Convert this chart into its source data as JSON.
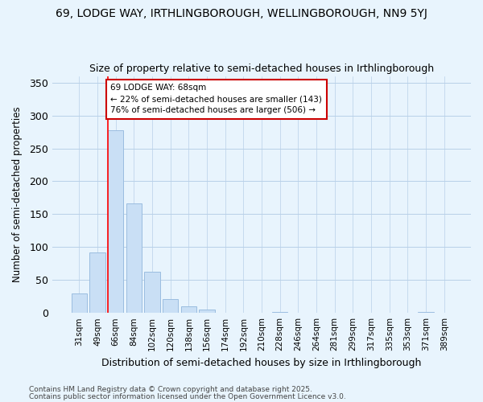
{
  "title1": "69, LODGE WAY, IRTHLINGBOROUGH, WELLINGBOROUGH, NN9 5YJ",
  "title2": "Size of property relative to semi-detached houses in Irthlingborough",
  "xlabel": "Distribution of semi-detached houses by size in Irthlingborough",
  "ylabel": "Number of semi-detached properties",
  "categories": [
    "31sqm",
    "49sqm",
    "66sqm",
    "84sqm",
    "102sqm",
    "120sqm",
    "138sqm",
    "156sqm",
    "174sqm",
    "192sqm",
    "210sqm",
    "228sqm",
    "246sqm",
    "264sqm",
    "281sqm",
    "299sqm",
    "317sqm",
    "335sqm",
    "353sqm",
    "371sqm",
    "389sqm"
  ],
  "values": [
    29,
    92,
    278,
    167,
    62,
    21,
    10,
    5,
    0,
    0,
    0,
    2,
    0,
    0,
    0,
    0,
    0,
    0,
    0,
    2,
    0
  ],
  "bar_color": "#c9dff5",
  "bar_edge_color": "#9bbde0",
  "red_line_x": 2,
  "annotation_line1": "69 LODGE WAY: 68sqm",
  "annotation_line2": "← 22% of semi-detached houses are smaller (143)",
  "annotation_line3": "76% of semi-detached houses are larger (506) →",
  "ylim": [
    0,
    360
  ],
  "yticks": [
    0,
    50,
    100,
    150,
    200,
    250,
    300,
    350
  ],
  "footnote1": "Contains HM Land Registry data © Crown copyright and database right 2025.",
  "footnote2": "Contains public sector information licensed under the Open Government Licence v3.0.",
  "background_color": "#e8f4fd",
  "annotation_box_facecolor": "#ffffff",
  "annotation_box_edgecolor": "#cc0000",
  "grid_color": "#b8d0e8"
}
